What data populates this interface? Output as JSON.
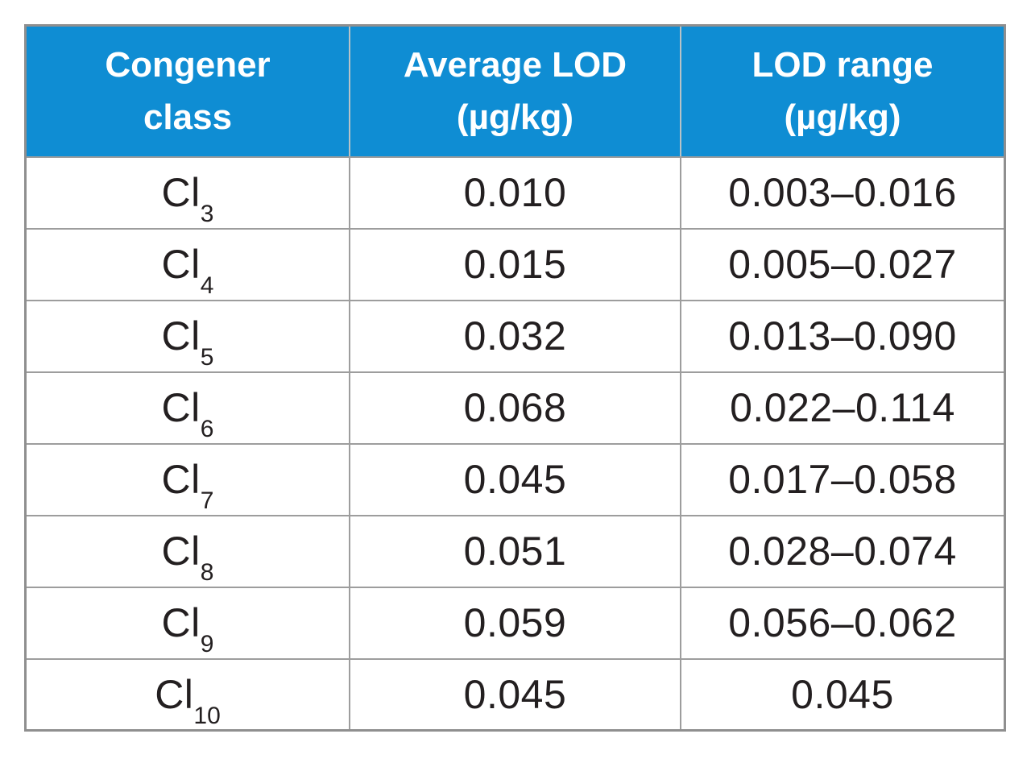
{
  "table": {
    "columns": [
      {
        "line1": "Congener",
        "line2": "class"
      },
      {
        "line1": "Average LOD",
        "line2": "(µg/kg)"
      },
      {
        "line1": "LOD range",
        "line2": "(µg/kg)"
      }
    ],
    "rows": [
      {
        "congener_base": "Cl",
        "congener_sub": "3",
        "avg_lod": "0.010",
        "lod_range": "0.003–0.016"
      },
      {
        "congener_base": "Cl",
        "congener_sub": "4",
        "avg_lod": "0.015",
        "lod_range": "0.005–0.027"
      },
      {
        "congener_base": "Cl",
        "congener_sub": "5",
        "avg_lod": "0.032",
        "lod_range": "0.013–0.090"
      },
      {
        "congener_base": "Cl",
        "congener_sub": "6",
        "avg_lod": "0.068",
        "lod_range": "0.022–0.114"
      },
      {
        "congener_base": "Cl",
        "congener_sub": "7",
        "avg_lod": "0.045",
        "lod_range": "0.017–0.058"
      },
      {
        "congener_base": "Cl",
        "congener_sub": "8",
        "avg_lod": "0.051",
        "lod_range": "0.028–0.074"
      },
      {
        "congener_base": "Cl",
        "congener_sub": "9",
        "avg_lod": "0.059",
        "lod_range": "0.056–0.062"
      },
      {
        "congener_base": "Cl",
        "congener_sub": "10",
        "avg_lod": "0.045",
        "lod_range": "0.045"
      }
    ]
  },
  "colors": {
    "header_bg": "#0f8dd3",
    "header_text": "#ffffff",
    "body_text": "#231f20",
    "border_outer": "#8f8f8f",
    "border_inner": "#9d9d9d",
    "page_bg": "#ffffff"
  }
}
